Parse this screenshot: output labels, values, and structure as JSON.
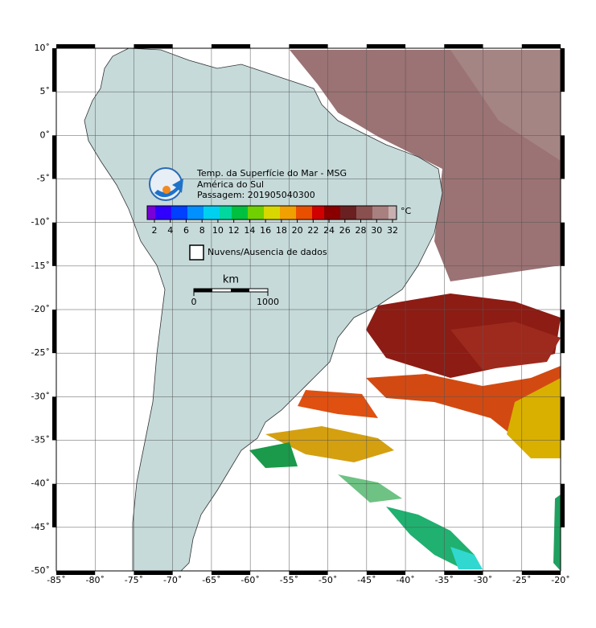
{
  "header": {
    "title": "Temp. da Superfície do Mar - MSG",
    "region": "América do Sul",
    "pass": "Passagem: 201905040300"
  },
  "colorbar": {
    "unit": "°C",
    "ticks": [
      2,
      4,
      6,
      8,
      10,
      12,
      14,
      16,
      18,
      20,
      22,
      24,
      26,
      28,
      30,
      32
    ]
  },
  "legend": {
    "label": "Nuvens/Ausencia de dados"
  },
  "scale_bar": {
    "unit": "km",
    "ticks": [
      0,
      1000
    ]
  },
  "map": {
    "lon_ticks": [
      {
        "value": -85,
        "label": "-85˚"
      },
      {
        "value": -80,
        "label": "-80˚"
      },
      {
        "value": -75,
        "label": "-75˚"
      },
      {
        "value": -70,
        "label": "-70˚"
      },
      {
        "value": -65,
        "label": "-65˚"
      },
      {
        "value": -60,
        "label": "-60˚"
      },
      {
        "value": -55,
        "label": "-55˚"
      },
      {
        "value": -50,
        "label": "-50˚"
      },
      {
        "value": -45,
        "label": "-45˚"
      },
      {
        "value": -40,
        "label": "-40˚"
      },
      {
        "value": -35,
        "label": "-35˚"
      },
      {
        "value": -30,
        "label": "-30˚"
      },
      {
        "value": -25,
        "label": "-25˚"
      },
      {
        "value": -20,
        "label": "-20˚"
      }
    ],
    "lat_ticks": [
      {
        "value": 10,
        "label": "10˚"
      },
      {
        "value": 5,
        "label": "5˚"
      },
      {
        "value": 0,
        "label": "0˚"
      },
      {
        "value": -5,
        "label": "-5˚"
      },
      {
        "value": -10,
        "label": "-10˚"
      },
      {
        "value": -15,
        "label": "-15˚"
      },
      {
        "value": -20,
        "label": "-20˚"
      },
      {
        "value": -25,
        "label": "-25˚"
      },
      {
        "value": -30,
        "label": "-30˚"
      },
      {
        "value": -35,
        "label": "-35˚"
      },
      {
        "value": -40,
        "label": "-40˚"
      },
      {
        "value": -45,
        "label": "-45˚"
      },
      {
        "value": -50,
        "label": "-50˚"
      }
    ]
  }
}
